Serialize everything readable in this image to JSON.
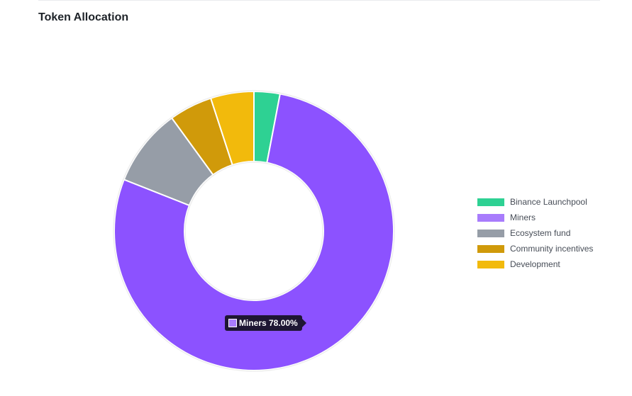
{
  "page": {
    "title": "Token Allocation"
  },
  "chart_data": {
    "type": "pie",
    "variant": "donut",
    "categories": [
      "Binance Launchpool",
      "Miners",
      "Ecosystem fund",
      "Community incentives",
      "Development"
    ],
    "values": [
      3,
      78,
      9,
      5,
      5
    ],
    "unit": "%",
    "colors": [
      "#2ed193",
      "#8c52ff",
      "#969da7",
      "#d09a0a",
      "#f2ba0c"
    ],
    "legend_colors": [
      "#2ed193",
      "#a87cfc",
      "#969da7",
      "#d09a0a",
      "#f2ba0c"
    ],
    "legend_position": "right",
    "tooltip": {
      "label": "Miners 78.00%",
      "color": "#a87cfc"
    }
  }
}
